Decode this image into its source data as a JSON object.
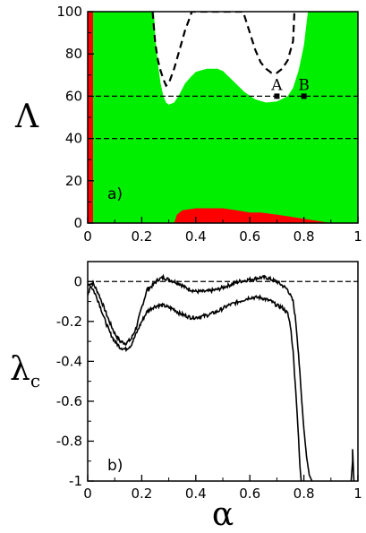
{
  "chart_data": [
    {
      "panel_label": "a)",
      "type": "area",
      "ylabel": "Λ",
      "xlabel": "",
      "xlim": [
        0,
        1
      ],
      "ylim": [
        0,
        100
      ],
      "xticks": [
        "0",
        "0.2",
        "0.4",
        "0.6",
        "0.8",
        "1"
      ],
      "yticks": [
        "0",
        "20",
        "40",
        "60",
        "80",
        "100"
      ],
      "colors": {
        "fill": "#00ee00",
        "region_red": "#ff0000",
        "region_white": "#ffffff"
      },
      "white_region_boundary": [
        [
          0.245,
          100
        ],
        [
          0.25,
          88
        ],
        [
          0.26,
          75
        ],
        [
          0.27,
          66
        ],
        [
          0.28,
          60
        ],
        [
          0.29,
          57
        ],
        [
          0.3,
          56
        ],
        [
          0.32,
          57
        ],
        [
          0.34,
          61
        ],
        [
          0.36,
          66
        ],
        [
          0.38,
          69
        ],
        [
          0.4,
          71.5
        ],
        [
          0.44,
          73
        ],
        [
          0.48,
          73
        ],
        [
          0.5,
          72
        ],
        [
          0.54,
          67
        ],
        [
          0.58,
          62
        ],
        [
          0.62,
          58.5
        ],
        [
          0.66,
          57
        ],
        [
          0.7,
          57.5
        ],
        [
          0.74,
          60
        ],
        [
          0.76,
          64
        ],
        [
          0.78,
          72
        ],
        [
          0.8,
          84
        ],
        [
          0.815,
          100
        ]
      ],
      "red_bottom_region": [
        [
          0.32,
          0
        ],
        [
          0.33,
          4
        ],
        [
          0.35,
          6
        ],
        [
          0.4,
          7
        ],
        [
          0.45,
          7
        ],
        [
          0.5,
          7
        ],
        [
          0.55,
          6
        ],
        [
          0.6,
          5
        ],
        [
          0.64,
          5
        ],
        [
          0.7,
          4
        ],
        [
          0.75,
          3
        ],
        [
          0.8,
          2
        ],
        [
          0.85,
          1
        ],
        [
          0.9,
          0
        ]
      ],
      "red_left_strip": {
        "x_max": 0.02
      },
      "dashed_boundary": [
        [
          0.24,
          100
        ],
        [
          0.25,
          85
        ],
        [
          0.26,
          77
        ],
        [
          0.27,
          72
        ],
        [
          0.28,
          68
        ],
        [
          0.29,
          65
        ],
        [
          0.3,
          66
        ],
        [
          0.32,
          73
        ],
        [
          0.34,
          82
        ],
        [
          0.36,
          91
        ],
        [
          0.38,
          98
        ],
        [
          0.385,
          100
        ],
        [
          0.575,
          100
        ],
        [
          0.58,
          98
        ],
        [
          0.6,
          90
        ],
        [
          0.62,
          82
        ],
        [
          0.64,
          76
        ],
        [
          0.66,
          73
        ],
        [
          0.68,
          71
        ],
        [
          0.7,
          71
        ],
        [
          0.72,
          73
        ],
        [
          0.74,
          77
        ],
        [
          0.76,
          86
        ],
        [
          0.765,
          100
        ]
      ],
      "reference_lines": [
        60,
        40
      ],
      "points": [
        {
          "label": "A",
          "x": 0.7,
          "y": 60
        },
        {
          "label": "B",
          "x": 0.8,
          "y": 60
        }
      ]
    },
    {
      "panel_label": "b)",
      "type": "line",
      "ylabel": "λc",
      "xlabel": "α",
      "xlim": [
        0,
        1
      ],
      "ylim": [
        -1,
        0.1
      ],
      "xticks": [
        "0",
        "0.2",
        "0.4",
        "0.6",
        "0.8",
        "1"
      ],
      "yticks": [
        "0",
        "-0.2",
        "-0.4",
        "-0.6",
        "-0.8",
        "-1"
      ],
      "reference_line": 0,
      "series": [
        {
          "x": [
            0,
            0.01,
            0.02,
            0.04,
            0.06,
            0.08,
            0.1,
            0.12,
            0.14,
            0.16,
            0.18,
            0.2,
            0.22,
            0.24,
            0.26,
            0.28,
            0.3,
            0.32,
            0.34,
            0.36,
            0.38,
            0.4,
            0.44,
            0.48,
            0.52,
            0.56,
            0.6,
            0.64,
            0.66,
            0.68,
            0.7,
            0.72,
            0.74,
            0.76,
            0.77,
            0.78,
            0.79,
            0.8,
            0.81,
            0.82,
            0.83
          ],
          "y": [
            -0.02,
            -0.01,
            -0.01,
            -0.06,
            -0.13,
            -0.2,
            -0.26,
            -0.3,
            -0.31,
            -0.29,
            -0.23,
            -0.13,
            -0.04,
            -0.02,
            0.01,
            0.02,
            0.01,
            0.0,
            -0.01,
            -0.03,
            -0.04,
            -0.05,
            -0.05,
            -0.04,
            -0.02,
            0.0,
            0.01,
            0.02,
            0.02,
            0.01,
            0.0,
            -0.02,
            -0.04,
            -0.1,
            -0.2,
            -0.36,
            -0.56,
            -0.74,
            -0.88,
            -0.97,
            -1.0
          ]
        },
        {
          "x": [
            0,
            0.01,
            0.02,
            0.04,
            0.06,
            0.08,
            0.1,
            0.12,
            0.14,
            0.16,
            0.18,
            0.2,
            0.22,
            0.24,
            0.26,
            0.28,
            0.3,
            0.32,
            0.34,
            0.36,
            0.38,
            0.4,
            0.44,
            0.48,
            0.52,
            0.56,
            0.6,
            0.64,
            0.66,
            0.68,
            0.7,
            0.72,
            0.74,
            0.75,
            0.76,
            0.77,
            0.78,
            0.785,
            0.79
          ],
          "y": [
            -0.07,
            -0.02,
            -0.04,
            -0.1,
            -0.18,
            -0.25,
            -0.3,
            -0.33,
            -0.34,
            -0.32,
            -0.26,
            -0.2,
            -0.15,
            -0.13,
            -0.12,
            -0.12,
            -0.13,
            -0.14,
            -0.16,
            -0.17,
            -0.18,
            -0.18,
            -0.17,
            -0.15,
            -0.12,
            -0.1,
            -0.08,
            -0.08,
            -0.09,
            -0.1,
            -0.12,
            -0.13,
            -0.16,
            -0.22,
            -0.35,
            -0.55,
            -0.78,
            -0.92,
            -1.0
          ]
        },
        {
          "x": [
            0.975,
            0.98,
            0.98,
            0.985
          ],
          "y": [
            -1.0,
            -0.9,
            -0.84,
            -1.0
          ]
        }
      ]
    }
  ]
}
